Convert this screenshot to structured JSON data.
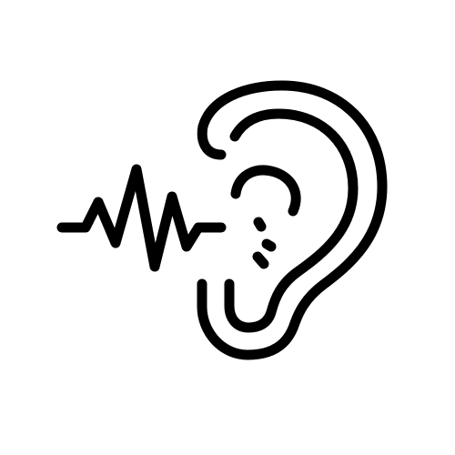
{
  "icon": {
    "name": "hearing-ear-icon",
    "parts": [
      "sound-wave-icon",
      "ear-icon"
    ],
    "stroke_color": "#000000",
    "background_color": "#ffffff"
  }
}
